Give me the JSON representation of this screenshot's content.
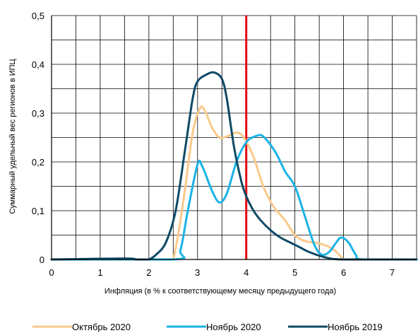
{
  "chart_data": {
    "type": "line",
    "title": "",
    "xlabel": "Инфляция (в % к соответствующему месяцу предыдущего года)",
    "ylabel": "Суммарный удельный вес регионов в ИПЦ",
    "xlim": [
      0,
      7.5
    ],
    "ylim": [
      0,
      0.5
    ],
    "x_ticks": [
      0,
      1,
      2,
      3,
      4,
      5,
      6,
      7
    ],
    "x_tick_labels": [
      "0",
      "1",
      "2",
      "3",
      "4",
      "5",
      "6",
      "7"
    ],
    "y_ticks": [
      0,
      0.1,
      0.2,
      0.3,
      0.4,
      0.5
    ],
    "y_tick_labels": [
      "0",
      "0,1",
      "0,2",
      "0,3",
      "0,4",
      "0,5"
    ],
    "x_grid_step": 0.5,
    "y_grid_step": 0.05,
    "grid": true,
    "legend_position": "bottom",
    "reference_line": {
      "x": 4,
      "color": "#e30613"
    },
    "series": [
      {
        "name": "Октябрь 2020",
        "color": "#fbc98b",
        "points": [
          [
            2.5,
            0
          ],
          [
            2.6,
            0.05
          ],
          [
            2.75,
            0.15
          ],
          [
            2.9,
            0.26
          ],
          [
            3.05,
            0.31
          ],
          [
            3.15,
            0.305
          ],
          [
            3.3,
            0.27
          ],
          [
            3.45,
            0.25
          ],
          [
            3.6,
            0.252
          ],
          [
            3.8,
            0.26
          ],
          [
            3.95,
            0.25
          ],
          [
            4.15,
            0.21
          ],
          [
            4.35,
            0.15
          ],
          [
            4.55,
            0.11
          ],
          [
            4.8,
            0.08
          ],
          [
            5.0,
            0.05
          ],
          [
            5.2,
            0.038
          ],
          [
            5.4,
            0.035
          ],
          [
            5.6,
            0.03
          ],
          [
            5.8,
            0.02
          ],
          [
            6.0,
            0.0
          ]
        ]
      },
      {
        "name": "Ноябрь 2020",
        "color": "#1ab3e6",
        "points": [
          [
            0,
            0
          ],
          [
            2.5,
            0
          ],
          [
            2.65,
            0.02
          ],
          [
            2.8,
            0.1
          ],
          [
            3.0,
            0.195
          ],
          [
            3.1,
            0.19
          ],
          [
            3.3,
            0.14
          ],
          [
            3.45,
            0.117
          ],
          [
            3.6,
            0.135
          ],
          [
            3.8,
            0.2
          ],
          [
            4.0,
            0.24
          ],
          [
            4.2,
            0.253
          ],
          [
            4.35,
            0.252
          ],
          [
            4.6,
            0.22
          ],
          [
            4.8,
            0.18
          ],
          [
            5.0,
            0.15
          ],
          [
            5.2,
            0.09
          ],
          [
            5.4,
            0.03
          ],
          [
            5.55,
            0.01
          ],
          [
            5.7,
            0.015
          ],
          [
            5.85,
            0.035
          ],
          [
            5.95,
            0.045
          ],
          [
            6.1,
            0.035
          ],
          [
            6.25,
            0.01
          ],
          [
            6.4,
            0
          ],
          [
            7.5,
            0
          ]
        ]
      },
      {
        "name": "Ноябрь 2019",
        "color": "#0e4a66",
        "points": [
          [
            0,
            0
          ],
          [
            1.5,
            0.002
          ],
          [
            1.75,
            0
          ],
          [
            1.9,
            0
          ],
          [
            2.0,
            0
          ],
          [
            2.15,
            0.01
          ],
          [
            2.35,
            0.035
          ],
          [
            2.55,
            0.1
          ],
          [
            2.75,
            0.23
          ],
          [
            2.9,
            0.33
          ],
          [
            3.0,
            0.365
          ],
          [
            3.2,
            0.38
          ],
          [
            3.35,
            0.383
          ],
          [
            3.5,
            0.37
          ],
          [
            3.6,
            0.33
          ],
          [
            3.75,
            0.23
          ],
          [
            3.9,
            0.16
          ],
          [
            4.0,
            0.13
          ],
          [
            4.15,
            0.1
          ],
          [
            4.3,
            0.08
          ],
          [
            4.5,
            0.06
          ],
          [
            4.7,
            0.045
          ],
          [
            4.9,
            0.035
          ],
          [
            5.1,
            0.025
          ],
          [
            5.3,
            0.015
          ],
          [
            5.6,
            0.005
          ],
          [
            6.0,
            0
          ],
          [
            7.5,
            0
          ]
        ]
      }
    ]
  }
}
